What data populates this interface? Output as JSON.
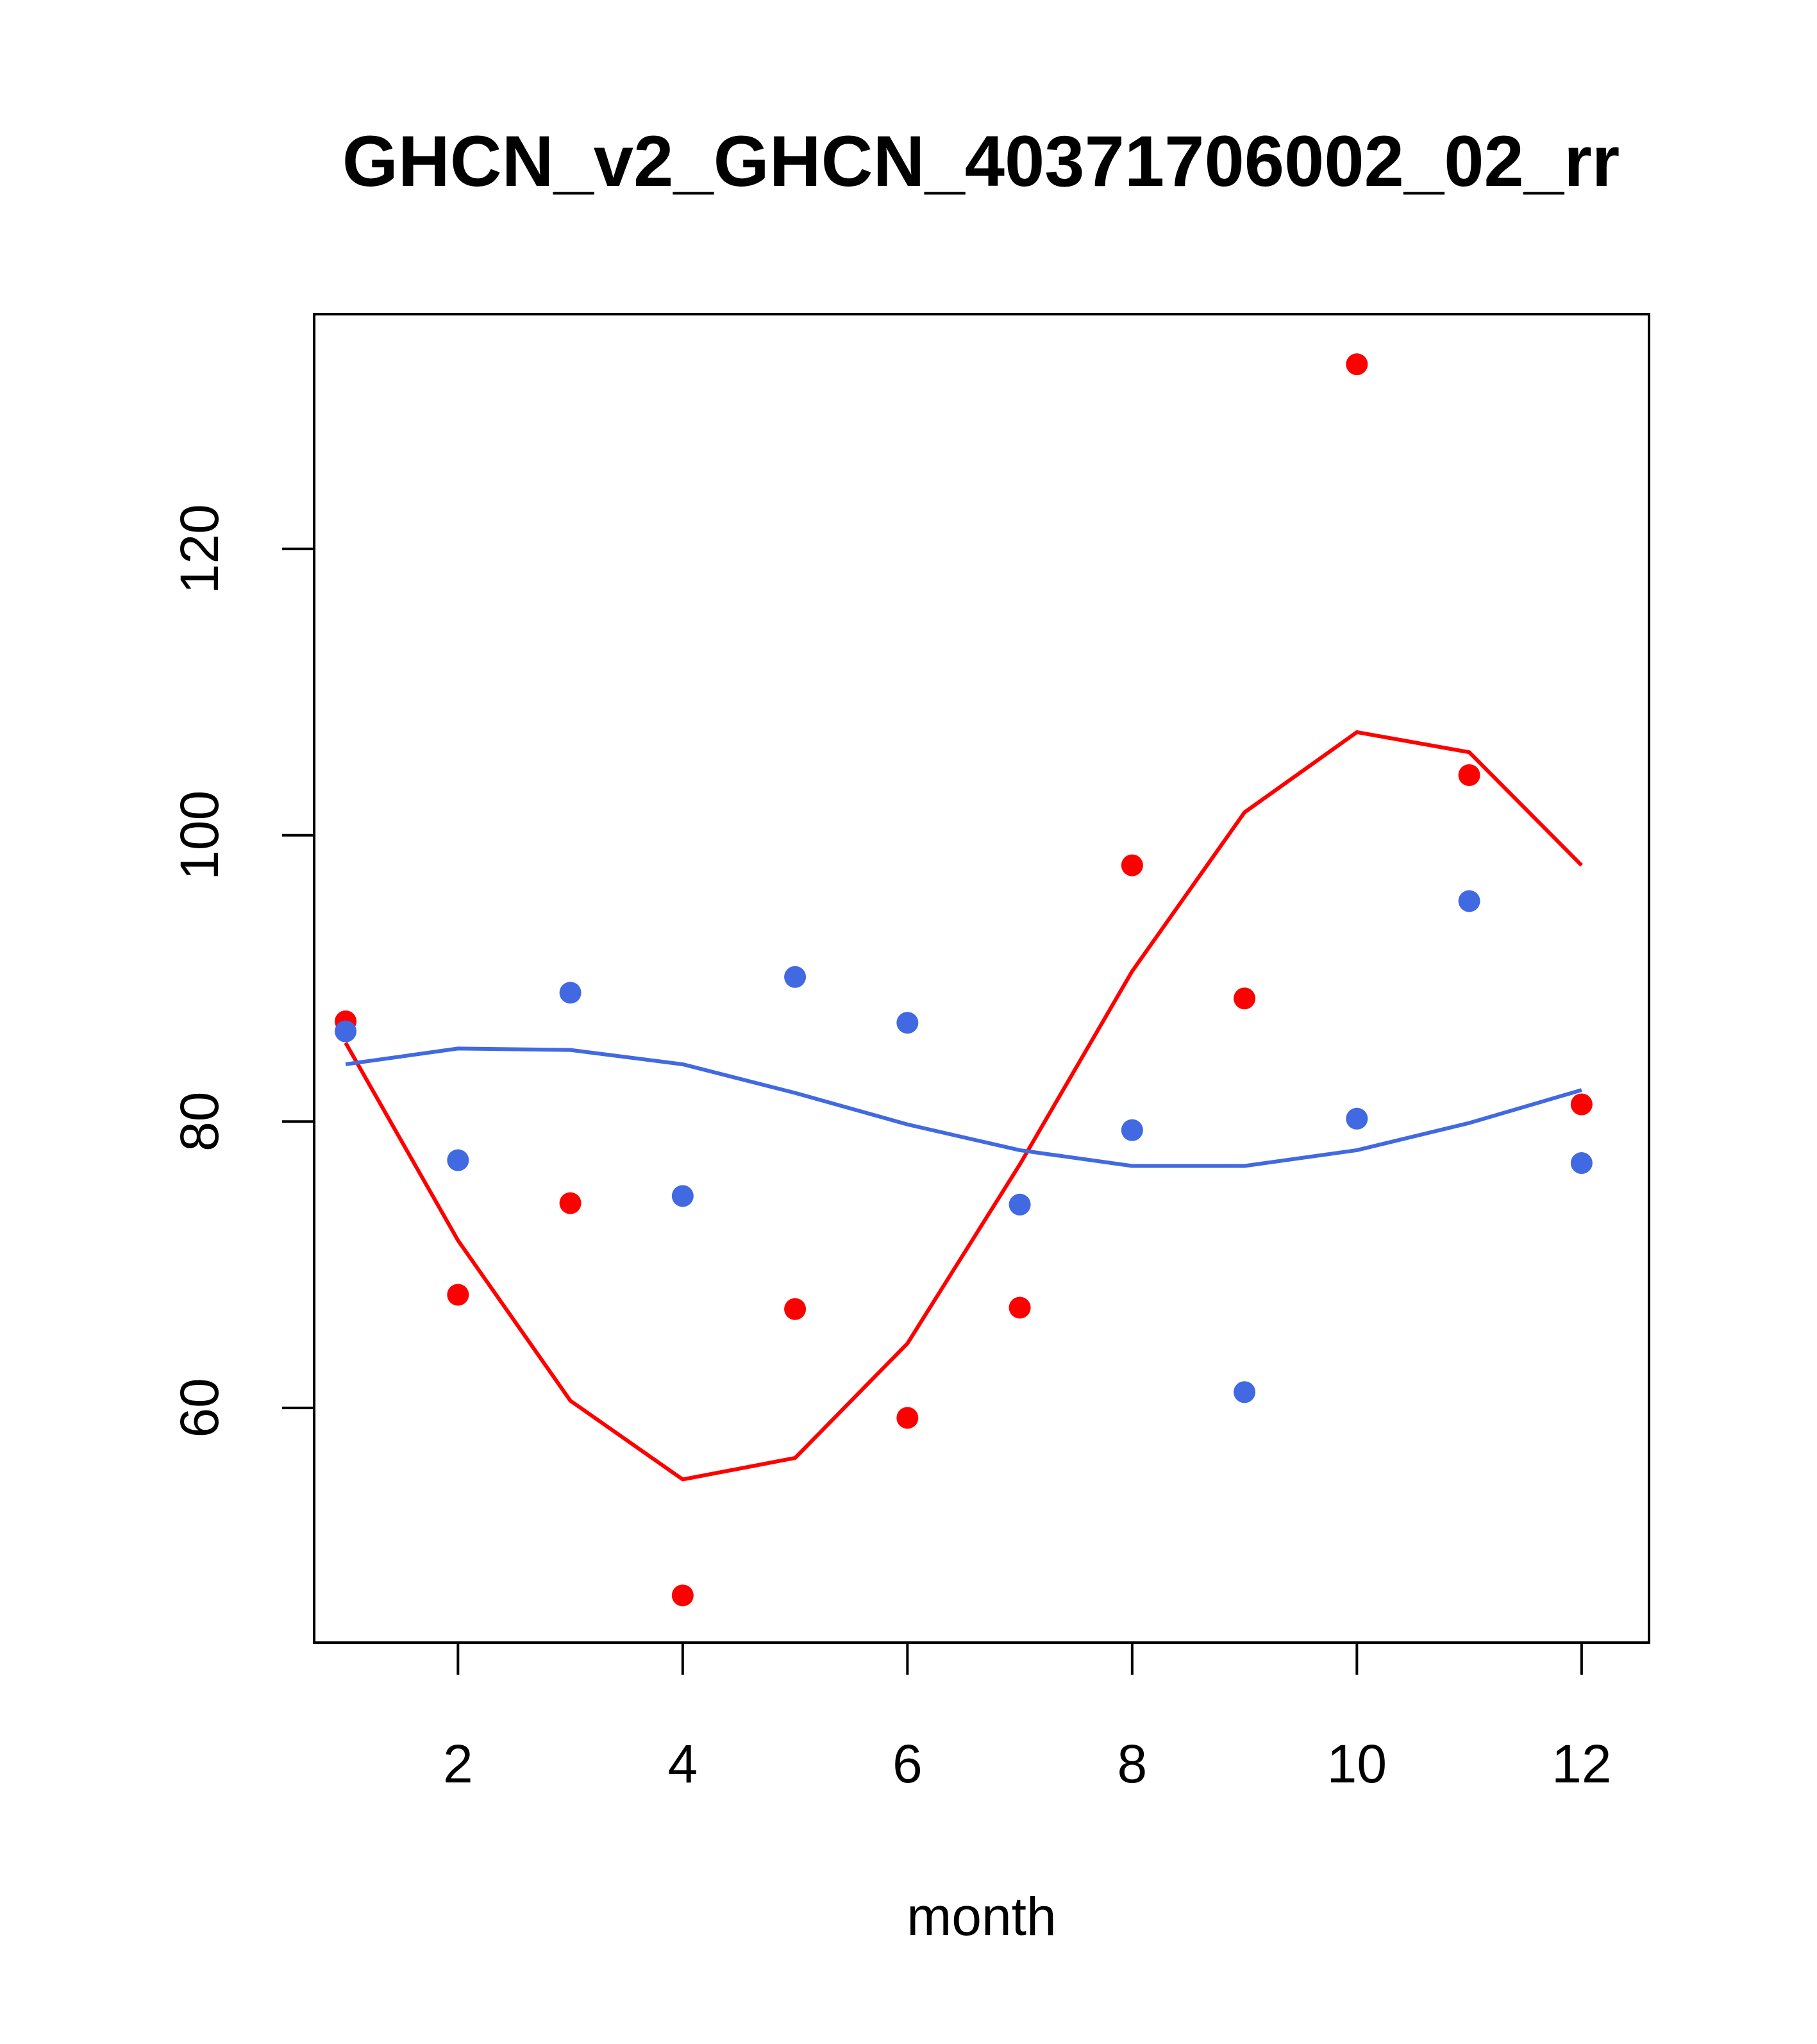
{
  "chart_data": {
    "type": "scatter",
    "title": "GHCN_v2_GHCN_40371706002_02_rr",
    "xlabel": "month",
    "ylabel": "",
    "xlim": [
      0.72,
      12.6
    ],
    "ylim": [
      43.6,
      136.4
    ],
    "x_ticks": [
      2,
      4,
      6,
      8,
      10,
      12
    ],
    "y_ticks": [
      60,
      80,
      100,
      120
    ],
    "grid": false,
    "legend": "none",
    "x": [
      1,
      2,
      3,
      4,
      5,
      6,
      7,
      8,
      9,
      10,
      11,
      12
    ],
    "series": [
      {
        "color": "#ff0000",
        "points": [
          87.0,
          67.9,
          74.3,
          46.9,
          66.9,
          59.3,
          67.0,
          97.9,
          88.6,
          132.9,
          104.2,
          81.2
        ],
        "line": [
          85.5,
          71.7,
          60.5,
          55.0,
          56.5,
          64.5,
          77.0,
          90.5,
          101.6,
          107.2,
          105.8,
          97.9
        ]
      },
      {
        "color": "#4169e1",
        "points": [
          86.3,
          77.3,
          89.0,
          74.8,
          90.1,
          86.9,
          74.2,
          79.4,
          61.1,
          80.2,
          95.4,
          77.1
        ],
        "line": [
          84.0,
          85.1,
          85.0,
          84.0,
          82.0,
          79.8,
          78.0,
          76.9,
          76.9,
          78.0,
          79.9,
          82.2
        ]
      }
    ]
  }
}
